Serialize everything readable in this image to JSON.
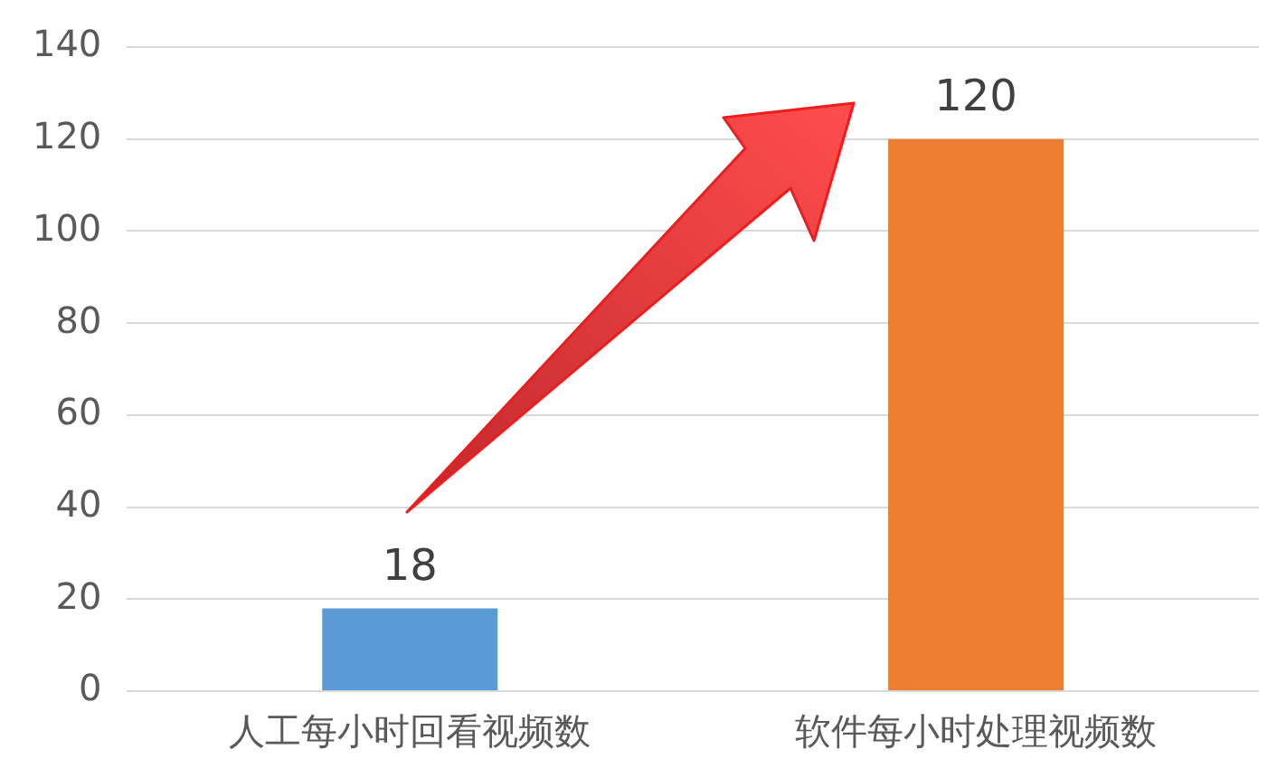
{
  "chart_data": {
    "type": "bar",
    "categories": [
      "人工每小时回看视频数",
      "软件每小时处理视频数"
    ],
    "values": [
      18,
      120
    ],
    "colors": [
      "#5b9bd5",
      "#ed7d31"
    ],
    "ylim": [
      0,
      140
    ],
    "yticks": [
      0,
      20,
      40,
      60,
      80,
      100,
      120,
      140
    ],
    "grid": "y",
    "data_labels": true,
    "legend": false
  }
}
